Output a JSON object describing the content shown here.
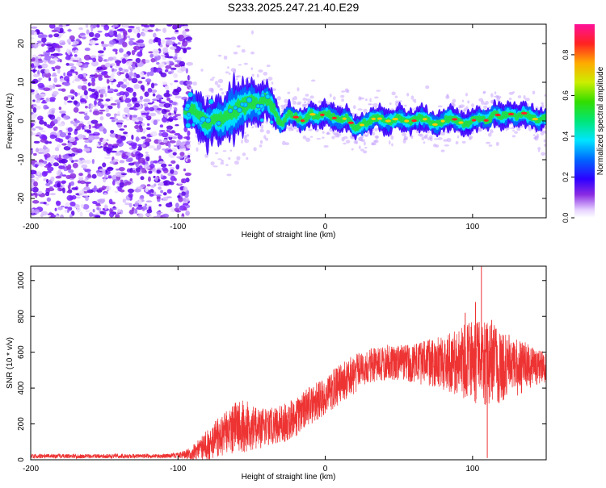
{
  "title": "S233.2025.247.21.40.E29",
  "colors": {
    "snr_line": "#ee3333",
    "trace_core": "#ff2222",
    "scatter": "#7a1fff",
    "scatter_light": "#c9a6ff"
  },
  "chart_data": [
    {
      "type": "heatmap",
      "name": "spectrogram",
      "xlabel": "Height of straight line (km)",
      "ylabel": "Frequency (Hz)",
      "xlim": [
        -200,
        150
      ],
      "ylim": [
        -25,
        25
      ],
      "x_ticks": [
        {
          "value": -200,
          "label": "-200"
        },
        {
          "value": -100,
          "label": "-100"
        },
        {
          "value": 0,
          "label": "0"
        },
        {
          "value": 100,
          "label": "100"
        }
      ],
      "y_ticks": [
        {
          "value": -20,
          "label": "-20"
        },
        {
          "value": -10,
          "label": "-10"
        },
        {
          "value": 0,
          "label": "0"
        },
        {
          "value": 10,
          "label": "10"
        },
        {
          "value": 20,
          "label": "20"
        }
      ],
      "colorbar": {
        "label": "Normalized spectral amplitude",
        "range": [
          0,
          0.95
        ],
        "ticks": [
          {
            "value": 0.0,
            "label": "0.0"
          },
          {
            "value": 0.2,
            "label": "0.2"
          },
          {
            "value": 0.4,
            "label": "0.4"
          },
          {
            "value": 0.6,
            "label": "0.6"
          },
          {
            "value": 0.8,
            "label": "0.8"
          }
        ]
      },
      "noise_region_x": [
        -200,
        -92
      ],
      "signal_trace": {
        "x": [
          -95,
          -90,
          -85,
          -80,
          -75,
          -70,
          -65,
          -60,
          -55,
          -50,
          -45,
          -40,
          -35,
          -30,
          -25,
          -20,
          -15,
          -10,
          -5,
          0,
          5,
          10,
          15,
          20,
          25,
          30,
          35,
          40,
          45,
          50,
          55,
          60,
          65,
          70,
          75,
          80,
          85,
          90,
          95,
          100,
          105,
          110,
          115,
          120,
          125,
          130,
          135,
          140,
          145,
          150
        ],
        "y": [
          2,
          3,
          1,
          -1,
          1,
          0,
          2,
          3,
          4,
          5,
          4,
          6,
          3,
          -1,
          2,
          1,
          0,
          2,
          1,
          2,
          1,
          0,
          1,
          -2,
          -1,
          0,
          1,
          0,
          0,
          1,
          0,
          0,
          1,
          0,
          -1,
          0,
          1,
          0,
          -1,
          0,
          1,
          0,
          2,
          1,
          2,
          1,
          2,
          1,
          0,
          1
        ],
        "width": [
          3,
          5,
          6,
          6,
          5,
          6,
          7,
          8,
          7,
          6,
          5,
          5,
          4,
          3,
          3,
          3,
          3,
          3,
          3,
          3,
          3,
          3,
          3,
          3,
          3,
          3,
          3,
          3,
          3,
          3,
          3,
          3,
          3,
          3,
          3,
          3,
          3,
          3,
          3,
          3,
          3,
          3,
          3,
          3,
          3,
          3,
          3,
          3,
          3,
          3
        ]
      }
    },
    {
      "type": "line",
      "name": "snr",
      "xlabel": "Height of straight line (km)",
      "ylabel": "SNR (10 * v/v)",
      "xlim": [
        -200,
        150
      ],
      "ylim": [
        0,
        1080
      ],
      "x_ticks": [
        {
          "value": -200,
          "label": "-200"
        },
        {
          "value": -100,
          "label": "-100"
        },
        {
          "value": 0,
          "label": "0"
        },
        {
          "value": 100,
          "label": "100"
        }
      ],
      "y_ticks": [
        {
          "value": 0,
          "label": "0"
        },
        {
          "value": 200,
          "label": "200"
        },
        {
          "value": 400,
          "label": "400"
        },
        {
          "value": 600,
          "label": "600"
        },
        {
          "value": 800,
          "label": "800"
        },
        {
          "value": 1000,
          "label": "1000"
        }
      ],
      "envelope": {
        "x": [
          -200,
          -150,
          -110,
          -100,
          -95,
          -90,
          -85,
          -80,
          -75,
          -70,
          -65,
          -60,
          -55,
          -50,
          -45,
          -40,
          -35,
          -30,
          -25,
          -20,
          -15,
          -10,
          -5,
          0,
          5,
          10,
          15,
          20,
          25,
          30,
          35,
          40,
          45,
          50,
          55,
          60,
          65,
          70,
          75,
          80,
          85,
          90,
          95,
          100,
          105,
          110,
          115,
          120,
          125,
          130,
          135,
          140,
          145,
          150
        ],
        "mean": [
          20,
          20,
          20,
          25,
          30,
          40,
          60,
          80,
          110,
          140,
          160,
          180,
          190,
          180,
          170,
          180,
          190,
          200,
          220,
          240,
          270,
          300,
          330,
          360,
          390,
          420,
          450,
          480,
          500,
          520,
          530,
          540,
          545,
          540,
          540,
          535,
          540,
          545,
          540,
          540,
          545,
          550,
          545,
          540,
          545,
          540,
          530,
          520,
          525,
          515,
          520,
          520,
          515,
          515
        ],
        "amp": [
          12,
          12,
          12,
          15,
          25,
          40,
          60,
          90,
          110,
          120,
          130,
          150,
          150,
          130,
          110,
          110,
          110,
          110,
          110,
          110,
          110,
          110,
          110,
          110,
          110,
          110,
          110,
          110,
          100,
          100,
          100,
          100,
          100,
          100,
          100,
          110,
          120,
          130,
          140,
          150,
          170,
          190,
          210,
          230,
          240,
          240,
          220,
          200,
          180,
          160,
          140,
          120,
          100,
          90
        ]
      },
      "spikes": [
        {
          "x": 106,
          "y": 1080
        },
        {
          "x": 102,
          "y": 880
        },
        {
          "x": 95,
          "y": 820
        },
        {
          "x": 113,
          "y": 780
        },
        {
          "x": 110,
          "y": 10
        }
      ]
    }
  ]
}
